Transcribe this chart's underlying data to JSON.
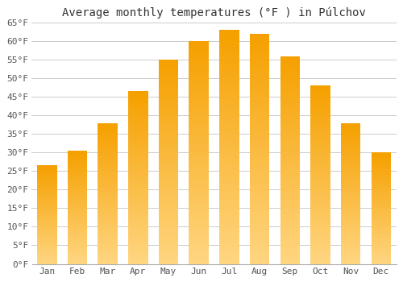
{
  "title": "Average monthly temperatures (°F ) in Púlchov",
  "months": [
    "Jan",
    "Feb",
    "Mar",
    "Apr",
    "May",
    "Jun",
    "Jul",
    "Aug",
    "Sep",
    "Oct",
    "Nov",
    "Dec"
  ],
  "values": [
    26.5,
    30.5,
    38,
    46.5,
    55,
    60,
    63,
    62,
    56,
    48,
    38,
    30
  ],
  "ylim": [
    0,
    65
  ],
  "yticks": [
    0,
    5,
    10,
    15,
    20,
    25,
    30,
    35,
    40,
    45,
    50,
    55,
    60,
    65
  ],
  "ytick_labels": [
    "0°F",
    "5°F",
    "10°F",
    "15°F",
    "20°F",
    "25°F",
    "30°F",
    "35°F",
    "40°F",
    "45°F",
    "50°F",
    "55°F",
    "60°F",
    "65°F"
  ],
  "bar_color": "#FCA823",
  "bar_edge_color": "#E8971E",
  "background_color": "#ffffff",
  "grid_color": "#cccccc",
  "title_fontsize": 10,
  "tick_fontsize": 8,
  "bar_width": 0.65
}
